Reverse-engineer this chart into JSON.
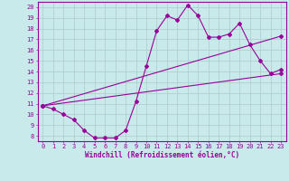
{
  "xlabel": "Windchill (Refroidissement éolien,°C)",
  "bg_color": "#c8eaea",
  "line_color": "#990099",
  "grid_color": "#b0c8c8",
  "xlim": [
    -0.5,
    23.5
  ],
  "ylim": [
    7.5,
    20.5
  ],
  "yticks": [
    8,
    9,
    10,
    11,
    12,
    13,
    14,
    15,
    16,
    17,
    18,
    19,
    20
  ],
  "xticks": [
    0,
    1,
    2,
    3,
    4,
    5,
    6,
    7,
    8,
    9,
    10,
    11,
    12,
    13,
    14,
    15,
    16,
    17,
    18,
    19,
    20,
    21,
    22,
    23
  ],
  "series1_x": [
    0,
    1,
    2,
    3,
    4,
    5,
    6,
    7,
    8,
    9,
    10,
    11,
    12,
    13,
    14,
    15,
    16,
    17,
    18,
    19,
    20,
    21,
    22,
    23
  ],
  "series1_y": [
    10.8,
    10.5,
    10.0,
    9.5,
    8.5,
    7.8,
    7.8,
    7.8,
    8.5,
    11.2,
    14.5,
    17.8,
    19.2,
    18.8,
    20.2,
    19.2,
    17.2,
    17.2,
    17.5,
    18.5,
    16.5,
    15.0,
    13.8,
    14.2
  ],
  "line2_x0": 0,
  "line2_x1": 23,
  "line2_y0": 10.8,
  "line2_y1": 17.3,
  "line3_x0": 0,
  "line3_x1": 23,
  "line3_y0": 10.8,
  "line3_y1": 13.8,
  "marker": "D",
  "markersize": 2.0,
  "linewidth": 0.8,
  "tick_fontsize": 5,
  "xlabel_fontsize": 5.5
}
